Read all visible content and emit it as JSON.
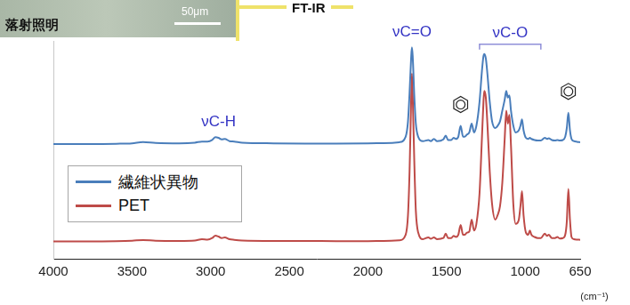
{
  "chart_data": {
    "type": "line",
    "title": "FT-IR",
    "x_label": "(cm⁻¹)",
    "photo": {
      "caption": "落射照明",
      "scale_bar": "50μm"
    },
    "x": [
      4000,
      3800,
      3600,
      3500,
      3430,
      3350,
      3200,
      3100,
      3055,
      3020,
      2990,
      2970,
      2950,
      2930,
      2910,
      2880,
      2850,
      2800,
      2600,
      2400,
      2200,
      2000,
      1900,
      1800,
      1760,
      1745,
      1735,
      1725,
      1720,
      1715,
      1705,
      1695,
      1680,
      1650,
      1615,
      1600,
      1580,
      1560,
      1520,
      1505,
      1490,
      1470,
      1455,
      1440,
      1425,
      1410,
      1395,
      1385,
      1370,
      1355,
      1340,
      1325,
      1310,
      1290,
      1275,
      1265,
      1260,
      1250,
      1240,
      1225,
      1210,
      1190,
      1175,
      1160,
      1145,
      1130,
      1120,
      1110,
      1100,
      1090,
      1075,
      1060,
      1040,
      1030,
      1020,
      1010,
      995,
      980,
      970,
      960,
      940,
      920,
      900,
      875,
      860,
      850,
      830,
      810,
      795,
      780,
      760,
      745,
      735,
      725,
      715,
      705,
      690,
      670,
      650
    ],
    "series": [
      {
        "name": "繊維状異物",
        "color": "#4a7ebb",
        "values": [
          52.7,
          52.7,
          52.8,
          53.0,
          53.6,
          53.2,
          53.0,
          53.3,
          53.8,
          53.8,
          54.5,
          55.8,
          55.5,
          54.8,
          55.0,
          54.0,
          53.8,
          53.3,
          53.0,
          52.9,
          52.9,
          53.0,
          53.1,
          53.5,
          56,
          63,
          76,
          92,
          97,
          93,
          75,
          62,
          56,
          54,
          54.5,
          54,
          55,
          54,
          54.8,
          56.5,
          54.5,
          54.5,
          55.5,
          55,
          56,
          61,
          56,
          56,
          57,
          58,
          62,
          58,
          61,
          72,
          86,
          93,
          94,
          92,
          85,
          72,
          63,
          60,
          61,
          63,
          68,
          73,
          77,
          74,
          75,
          68,
          61,
          58,
          59,
          61,
          64,
          59,
          55.5,
          55,
          55.5,
          55,
          54.5,
          54.3,
          54.3,
          55.5,
          55,
          55.3,
          54.5,
          54.3,
          54.5,
          54.3,
          54.5,
          56,
          60,
          67,
          59,
          55,
          54,
          53.7,
          53.5
        ]
      },
      {
        "name": "PET",
        "color": "#be4b48",
        "values": [
          8.0,
          8.0,
          8.1,
          8.3,
          8.6,
          8.3,
          8.2,
          8.4,
          9.0,
          8.8,
          9.5,
          10.6,
          10.2,
          9.5,
          9.8,
          9.0,
          8.7,
          8.4,
          8.2,
          8.2,
          8.1,
          8.1,
          8.2,
          8.5,
          11,
          20,
          40,
          72,
          85,
          75,
          45,
          22,
          12,
          9,
          9.8,
          9.2,
          9.8,
          9.0,
          9.5,
          11.5,
          9.5,
          9.5,
          10.5,
          10,
          11,
          15.5,
          11,
          11,
          12,
          12.5,
          18,
          13,
          16,
          30,
          55,
          72,
          77,
          74,
          62,
          40,
          25,
          18,
          20,
          24,
          35,
          55,
          68,
          62,
          66,
          52,
          25,
          16,
          18,
          24,
          31,
          20,
          12,
          11,
          13,
          11,
          10,
          9.5,
          9.5,
          11.5,
          10.5,
          11,
          9.5,
          9.5,
          10,
          9.3,
          9.5,
          11,
          17,
          32,
          18,
          10,
          9,
          8.8,
          8.7
        ]
      }
    ],
    "xlim": [
      4000,
      650
    ],
    "xticks": [
      4000,
      3500,
      3000,
      2500,
      2000,
      1500,
      1000,
      650
    ],
    "ylim": [
      0,
      100
    ],
    "yticks": [],
    "grid": false,
    "legend": "left",
    "tick_labels": "x",
    "annotations": [
      {
        "text": "νC-H",
        "x": 2950
      },
      {
        "text": "νC=O",
        "x": 1720
      },
      {
        "text": "νC-O",
        "x_range": [
          1290,
          900
        ]
      },
      {
        "marker": "benzene",
        "x": 1410
      },
      {
        "marker": "benzene",
        "x": 725
      }
    ]
  }
}
